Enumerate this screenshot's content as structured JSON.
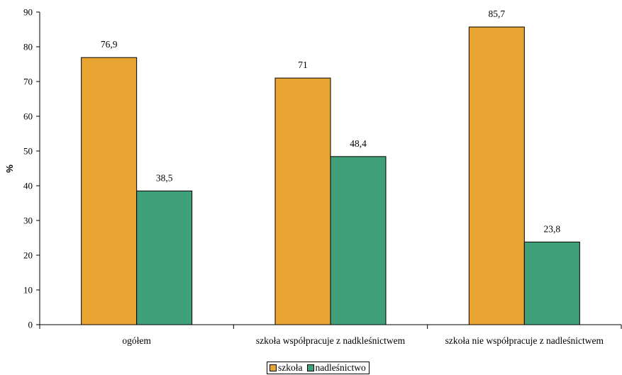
{
  "chart_data": {
    "type": "bar",
    "categories": [
      "ogółem",
      "szkoła współpracuje z nadkleśnictwem",
      "szkoła nie współpracuje z nadleśnictwem"
    ],
    "series": [
      {
        "name": "szkoła",
        "values": [
          76.9,
          71,
          85.7
        ],
        "labels": [
          "76,9",
          "71",
          "85,7"
        ],
        "color": "#E8A531"
      },
      {
        "name": "nadleśnictwo",
        "values": [
          38.5,
          48.4,
          23.8
        ],
        "labels": [
          "38,5",
          "48,4",
          "23,8"
        ],
        "color": "#3FA07A"
      }
    ],
    "ylabel": "%",
    "xlabel": "",
    "ylim": [
      0,
      90
    ],
    "yticks": [
      0,
      10,
      20,
      30,
      40,
      50,
      60,
      70,
      80,
      90
    ],
    "grid": false,
    "legend_position": "bottom-center"
  }
}
